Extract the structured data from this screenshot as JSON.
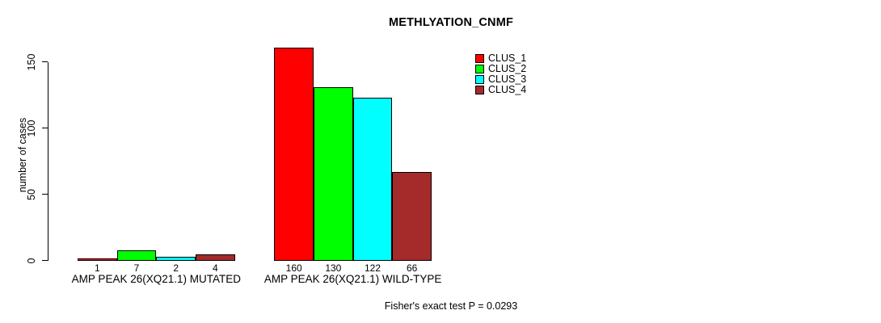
{
  "title": "METHLYATION_CNMF",
  "y_axis": {
    "label": "number of cases",
    "tick_labels": [
      "0",
      "50",
      "100",
      "150"
    ]
  },
  "footer": {
    "annotation": "Fisher's exact test P = 0.0293"
  },
  "legend": {
    "items": [
      {
        "label": "CLUS_1",
        "color": "#FF0000"
      },
      {
        "label": "CLUS_2",
        "color": "#00FF00"
      },
      {
        "label": "CLUS_3",
        "color": "#00FFFF"
      },
      {
        "label": "CLUS_4",
        "color": "#A52A2A"
      }
    ]
  },
  "chart_data": {
    "type": "bar",
    "title": "METHLYATION_CNMF",
    "xlabel": "",
    "ylabel": "number of cases",
    "ylim": [
      0,
      165
    ],
    "yticks": [
      0,
      50,
      100,
      150
    ],
    "grid": false,
    "legend_position": "top-right",
    "bar_outline_color": "#000000",
    "background_color": "#FFFFFF",
    "categories": [
      "AMP PEAK 26(XQ21.1) MUTATED",
      "AMP PEAK 26(XQ21.1) WILD-TYPE"
    ],
    "series": [
      {
        "name": "CLUS_1",
        "color": "#FF0000",
        "values": [
          1,
          160
        ]
      },
      {
        "name": "CLUS_2",
        "color": "#00FF00",
        "values": [
          7,
          130
        ]
      },
      {
        "name": "CLUS_3",
        "color": "#00FFFF",
        "values": [
          2,
          122
        ]
      },
      {
        "name": "CLUS_4",
        "color": "#A52A2A",
        "values": [
          4,
          66
        ]
      }
    ],
    "bar_value_labels": [
      [
        "1",
        "7",
        "2",
        "4"
      ],
      [
        "160",
        "130",
        "122",
        "66"
      ]
    ],
    "annotation": "Fisher's exact test P = 0.0293"
  }
}
